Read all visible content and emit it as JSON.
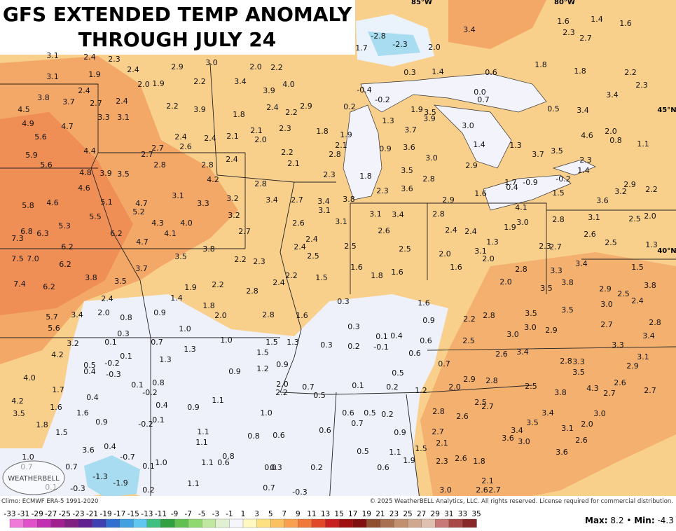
{
  "title": [
    "GFS EXTENDED TEMP ANOMALY",
    "THROUGH JULY 24"
  ],
  "climo": "Climo: ECMWF ERA-5 1991-2020",
  "copyright": "© 2025 WeatherBELL Analytics, LLC. All rights reserved. License required for commercial distribution.",
  "logo": "WEATHERBELL",
  "stats": {
    "max_label": "Max:",
    "max": "8.2",
    "separator": "•",
    "min_label": "Min:",
    "min": "-4.3"
  },
  "grid_labels": [
    "85°W",
    "80°W",
    "45°N",
    "40°N"
  ],
  "colorbar": {
    "labels": [
      "-33",
      "-31",
      "-29",
      "-27",
      "-25",
      "-23",
      "-21",
      "-19",
      "-17",
      "-15",
      "-13",
      "-11",
      "-9",
      "-7",
      "-5",
      "-3",
      "-1",
      "1",
      "3",
      "5",
      "7",
      "9",
      "11",
      "13",
      "15",
      "17",
      "19",
      "21",
      "23",
      "25",
      "27",
      "29",
      "31",
      "33",
      "35"
    ]
  },
  "station_values": [
    "3.1",
    "2.4",
    "2.3",
    "3.1",
    "1.9",
    "2.4",
    "2.9",
    "3.0",
    "2.0",
    "1.9",
    "2.2",
    "3.4",
    "2.0",
    "2.2",
    "3.8",
    "3.7",
    "2.4",
    "2.7",
    "2.4",
    "2.2",
    "3.9",
    "3.9",
    "4.0",
    "1.8",
    "2.4",
    "2.2",
    "2.9",
    "4.5",
    "4.9",
    "4.7",
    "3.3",
    "3.1",
    "5.6",
    "2.4",
    "2.4",
    "2.1",
    "2.1",
    "2.0",
    "2.3",
    "1.8",
    "1.9",
    "2.7",
    "2.6",
    "2.7",
    "4.4",
    "5.9",
    "2.2",
    "2.8",
    "2.1",
    "2.8",
    "2.8",
    "2.4",
    "2.1",
    "5.6",
    "4.8",
    "3.9",
    "3.5",
    "4.2",
    "2.8",
    "2.3",
    "4.6",
    "3.1",
    "3.3",
    "3.2",
    "3.4",
    "2.7",
    "3.4",
    "3.8",
    "5.8",
    "4.6",
    "5.1",
    "4.7",
    "5.2",
    "5.5",
    "3.2",
    "3.1",
    "4.3",
    "4.0",
    "2.6",
    "3.1",
    "6.8",
    "6.3",
    "5.3",
    "6.2",
    "4.1",
    "2.7",
    "7.3",
    "6.2",
    "4.7",
    "2.4",
    "3.8",
    "2.4",
    "2.5",
    "3.5",
    "2.2",
    "2.3",
    "2.5",
    "7.5",
    "7.0",
    "6.2",
    "3.7",
    "3.8",
    "3.5",
    "2.2",
    "2.4",
    "1.5",
    "7.4",
    "6.2",
    "1.9",
    "2.2",
    "2.8",
    "1.4",
    "2.4",
    "1.8",
    "2.0",
    "5.7",
    "3.4",
    "0.8",
    "0.9",
    "2.0",
    "2.8",
    "1.6",
    "5.6",
    "1.0",
    "0.3",
    "3.2",
    "0.1",
    "0.7",
    "1.0",
    "1.5",
    "1.3",
    "4.2",
    "0.1",
    "1.3",
    "1.5",
    "0.5",
    "-0.2",
    "0.4",
    "-0.3",
    "1.3",
    "0.9",
    "4.0",
    "0.9",
    "1.2",
    "0.1",
    "0.8",
    "1.7",
    "-0.2",
    "2.0",
    "0.7",
    "2.2",
    "0.4",
    "4.2",
    "1.1",
    "0.4",
    "0.9",
    "1.6",
    "3.5",
    "1.6",
    "1.0",
    "1.8",
    "0.9",
    "-0.2",
    "0.1",
    "1.5",
    "1.1",
    "0.8",
    "0.6",
    "3.6",
    "0.4",
    "1.1",
    "-0.7",
    "0.8",
    "1.0",
    "0.7",
    "0.7",
    "0.1",
    "1.0",
    "1.1",
    "0.6",
    "0.0",
    "0.3",
    "-1.3",
    "-1.9",
    "0.1",
    "-0.3",
    "0.2",
    "1.1",
    "0.7",
    "-0.3",
    "0.2",
    "-2.8",
    "-2.3",
    "1.7",
    "2.0",
    "3.4",
    "1.6",
    "1.4",
    "1.6",
    "2.3",
    "2.7",
    "1.8",
    "1.8",
    "2.2",
    "2.3",
    "3.4",
    "3.4",
    "0.5",
    "0.6",
    "0.3",
    "1.4",
    "0.0",
    "0.7",
    "-0.4",
    "-0.2",
    "0.2",
    "1.9",
    "3.5",
    "3.9",
    "1.3",
    "3.7",
    "3.0",
    "4.6",
    "2.0",
    "0.8",
    "1.1",
    "1.4",
    "1.3",
    "0.9",
    "3.6",
    "3.0",
    "3.7",
    "3.5",
    "2.3",
    "1.4",
    "2.9",
    "1.8",
    "3.5",
    "2.8",
    "1.7",
    "-0.9",
    "-0.2",
    "0.4",
    "2.3",
    "3.6",
    "2.9",
    "2.2",
    "3.2",
    "1.5",
    "1.6",
    "2.9",
    "3.6",
    "4.1",
    "3.1",
    "3.4",
    "2.8",
    "2.8",
    "3.1",
    "2.5",
    "2.0",
    "2.4",
    "3.0",
    "1.9",
    "2.6",
    "2.4",
    "1.3",
    "2.6",
    "2.5",
    "1.3",
    "2.3",
    "2.7",
    "2.5",
    "3.1",
    "2.0",
    "2.0",
    "1.6",
    "1.6",
    "2.8",
    "3.3",
    "3.4",
    "1.5",
    "1.8",
    "1.6",
    "2.0",
    "3.5",
    "3.8",
    "2.9",
    "2.5",
    "3.8",
    "3.0",
    "2.4",
    "1.6",
    "0.3",
    "2.2",
    "2.8",
    "3.5",
    "3.5",
    "0.9",
    "2.7",
    "2.8",
    "0.3",
    "3.0",
    "2.9",
    "3.0",
    "0.1",
    "0.4",
    "3.4",
    "0.6",
    "0.3",
    "0.2",
    "-0.1",
    "2.5",
    "3.3",
    "0.6",
    "2.6",
    "3.4",
    "2.8",
    "3.3",
    "3.1",
    "2.9",
    "0.7",
    "0.5",
    "3.5",
    "2.9",
    "2.8",
    "2.6",
    "2.5",
    "0.1",
    "0.2",
    "1.2",
    "2.0",
    "3.8",
    "4.3",
    "2.7",
    "2.7",
    "0.5",
    "2.5",
    "2.7",
    "2.8",
    "2.6",
    "0.6",
    "0.5",
    "0.2",
    "3.4",
    "3.0",
    "0.7",
    "3.5",
    "2.0",
    "2.7",
    "0.9",
    "3.4",
    "3.1",
    "0.6",
    "2.1",
    "3.6",
    "3.0",
    "2.6",
    "1.5",
    "0.5",
    "1.1",
    "3.6",
    "2.3",
    "2.6",
    "1.8",
    "1.9",
    "0.6",
    "2.1",
    "2.6",
    "2.7",
    "3.0"
  ]
}
